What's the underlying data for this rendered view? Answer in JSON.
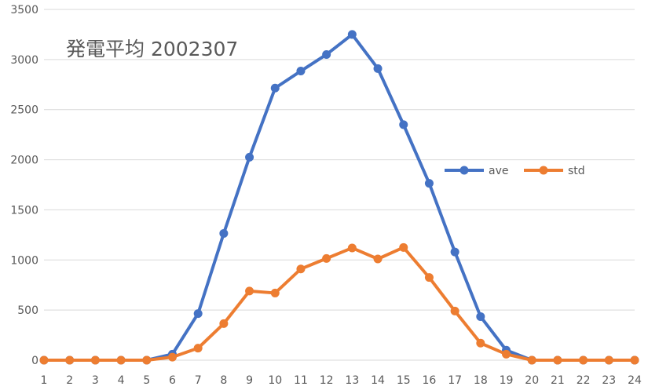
{
  "chart_data": {
    "type": "line",
    "title": "発電平均 2002307",
    "xlabel": "",
    "ylabel": "",
    "categories": [
      "1",
      "2",
      "3",
      "4",
      "5",
      "6",
      "7",
      "8",
      "9",
      "10",
      "11",
      "12",
      "13",
      "14",
      "15",
      "16",
      "17",
      "18",
      "19",
      "20",
      "21",
      "22",
      "23",
      "24"
    ],
    "ylim": [
      0,
      3500
    ],
    "yticks": [
      0,
      500,
      1000,
      1500,
      2000,
      2500,
      3000,
      3500
    ],
    "grid": true,
    "legend_position": "right",
    "series": [
      {
        "name": "ave",
        "color": "#4472C4",
        "values": [
          0,
          0,
          0,
          0,
          0,
          60,
          465,
          1265,
          2025,
          2715,
          2885,
          3050,
          3250,
          2910,
          2350,
          1765,
          1080,
          435,
          100,
          0,
          0,
          0,
          0,
          0
        ]
      },
      {
        "name": "std",
        "color": "#ED7D31",
        "values": [
          0,
          0,
          0,
          0,
          0,
          30,
          120,
          365,
          690,
          670,
          910,
          1015,
          1120,
          1010,
          1125,
          825,
          490,
          170,
          60,
          0,
          0,
          0,
          0,
          0
        ]
      }
    ]
  },
  "colors": {
    "grid": "#d9d9d9",
    "axis_text": "#595959"
  }
}
